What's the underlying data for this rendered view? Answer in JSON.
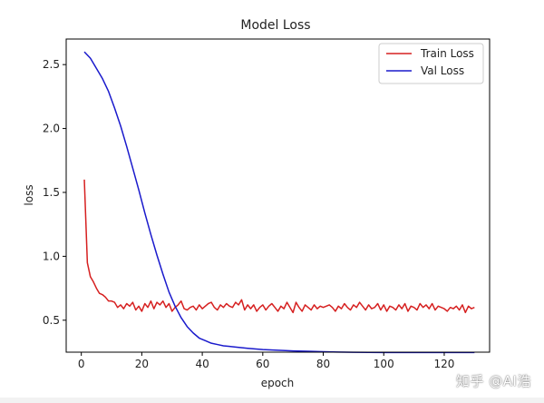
{
  "chart_data": {
    "type": "line",
    "title": "Model Loss",
    "xlabel": "epoch",
    "ylabel": "loss",
    "xlim": [
      -5,
      135
    ],
    "ylim": [
      0.25,
      2.7
    ],
    "xticks": [
      0,
      20,
      40,
      60,
      80,
      100,
      120
    ],
    "yticks": [
      0.5,
      1.0,
      1.5,
      2.0,
      2.5
    ],
    "xtick_labels": [
      "0",
      "20",
      "40",
      "60",
      "80",
      "100",
      "120"
    ],
    "ytick_labels": [
      "0.5",
      "1.0",
      "1.5",
      "2.0",
      "2.5"
    ],
    "grid": false,
    "legend_position": "top-right",
    "series": [
      {
        "name": "Train Loss",
        "color": "#d62020",
        "x": [
          1,
          2,
          3,
          4,
          5,
          6,
          7,
          8,
          9,
          10,
          11,
          12,
          13,
          14,
          15,
          16,
          17,
          18,
          19,
          20,
          21,
          22,
          23,
          24,
          25,
          26,
          27,
          28,
          29,
          30,
          31,
          32,
          33,
          34,
          35,
          36,
          37,
          38,
          39,
          40,
          41,
          42,
          43,
          44,
          45,
          46,
          47,
          48,
          49,
          50,
          51,
          52,
          53,
          54,
          55,
          56,
          57,
          58,
          59,
          60,
          61,
          62,
          63,
          64,
          65,
          66,
          67,
          68,
          69,
          70,
          71,
          72,
          73,
          74,
          75,
          76,
          77,
          78,
          79,
          80,
          81,
          82,
          83,
          84,
          85,
          86,
          87,
          88,
          89,
          90,
          91,
          92,
          93,
          94,
          95,
          96,
          97,
          98,
          99,
          100,
          101,
          102,
          103,
          104,
          105,
          106,
          107,
          108,
          109,
          110,
          111,
          112,
          113,
          114,
          115,
          116,
          117,
          118,
          119,
          120,
          121,
          122,
          123,
          124,
          125,
          126,
          127,
          128,
          129,
          130
        ],
        "values": [
          1.6,
          0.95,
          0.84,
          0.8,
          0.75,
          0.71,
          0.7,
          0.68,
          0.65,
          0.65,
          0.64,
          0.6,
          0.62,
          0.59,
          0.63,
          0.61,
          0.64,
          0.58,
          0.61,
          0.57,
          0.63,
          0.6,
          0.65,
          0.59,
          0.64,
          0.62,
          0.65,
          0.6,
          0.63,
          0.57,
          0.6,
          0.62,
          0.65,
          0.59,
          0.58,
          0.6,
          0.61,
          0.58,
          0.62,
          0.59,
          0.61,
          0.63,
          0.64,
          0.6,
          0.58,
          0.62,
          0.6,
          0.63,
          0.61,
          0.6,
          0.64,
          0.62,
          0.66,
          0.58,
          0.62,
          0.59,
          0.62,
          0.57,
          0.6,
          0.62,
          0.58,
          0.61,
          0.63,
          0.6,
          0.57,
          0.61,
          0.59,
          0.64,
          0.6,
          0.56,
          0.64,
          0.6,
          0.57,
          0.62,
          0.6,
          0.58,
          0.62,
          0.59,
          0.61,
          0.6,
          0.61,
          0.62,
          0.6,
          0.57,
          0.61,
          0.59,
          0.63,
          0.6,
          0.58,
          0.62,
          0.6,
          0.64,
          0.61,
          0.58,
          0.62,
          0.59,
          0.6,
          0.63,
          0.58,
          0.62,
          0.57,
          0.61,
          0.6,
          0.58,
          0.62,
          0.59,
          0.63,
          0.57,
          0.61,
          0.6,
          0.58,
          0.63,
          0.6,
          0.62,
          0.59,
          0.63,
          0.58,
          0.61,
          0.6,
          0.59,
          0.57,
          0.6,
          0.59,
          0.61,
          0.58,
          0.62,
          0.56,
          0.61,
          0.59,
          0.6
        ]
      },
      {
        "name": "Val Loss",
        "color": "#1a1acc",
        "x": [
          1,
          3,
          5,
          7,
          9,
          11,
          13,
          15,
          17,
          19,
          21,
          23,
          25,
          27,
          29,
          31,
          33,
          35,
          37,
          39,
          41,
          43,
          45,
          47,
          49,
          51,
          55,
          60,
          65,
          70,
          75,
          80,
          85,
          90,
          95,
          100,
          110,
          120,
          130
        ],
        "values": [
          2.6,
          2.55,
          2.47,
          2.39,
          2.29,
          2.16,
          2.02,
          1.86,
          1.69,
          1.52,
          1.34,
          1.17,
          1.01,
          0.86,
          0.72,
          0.61,
          0.52,
          0.45,
          0.4,
          0.36,
          0.34,
          0.32,
          0.31,
          0.3,
          0.295,
          0.29,
          0.28,
          0.27,
          0.265,
          0.26,
          0.257,
          0.254,
          0.251,
          0.249,
          0.248,
          0.247,
          0.247,
          0.247,
          0.247
        ]
      }
    ]
  },
  "watermark": "知乎 @AI浩"
}
